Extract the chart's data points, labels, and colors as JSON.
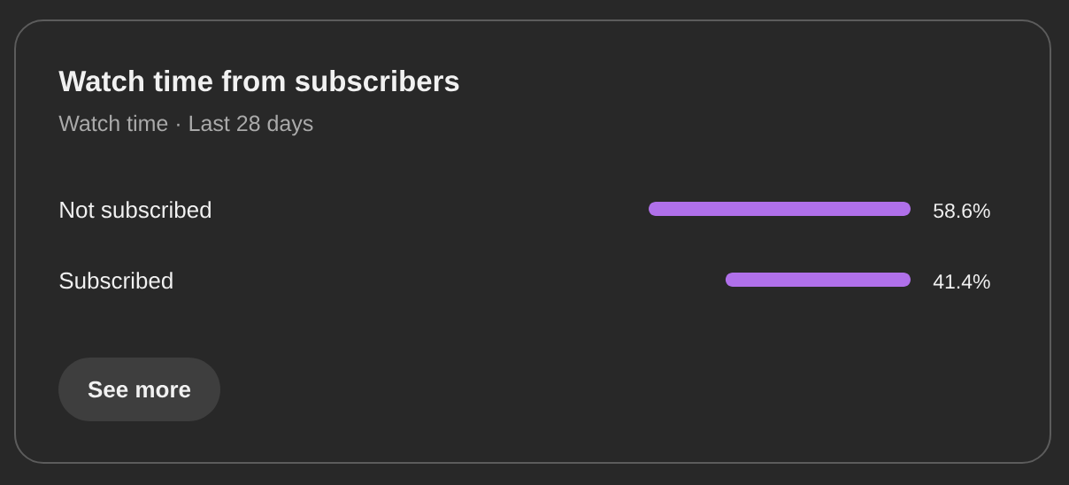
{
  "chart_data": {
    "type": "bar",
    "orientation": "horizontal",
    "title": "Watch time from subscribers",
    "subtitle": "Watch time · Last 28 days",
    "categories": [
      "Not subscribed",
      "Subscribed"
    ],
    "values": [
      58.6,
      41.4
    ],
    "value_labels": [
      "58.6%",
      "41.4%"
    ],
    "color": "#b070ea",
    "tick_labels": "y",
    "annotations": [
      "See more"
    ]
  }
}
